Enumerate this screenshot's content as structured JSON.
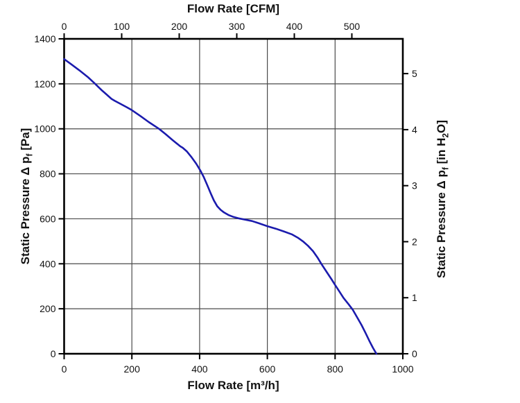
{
  "chart_data": {
    "type": "line",
    "grid": {
      "on": true,
      "color": "#4a4a4a"
    },
    "axes": {
      "top": {
        "label": "Flow Rate [CFM]",
        "ticks": [
          0,
          100,
          200,
          300,
          400,
          500
        ],
        "m3h_per_cfm": 1.699
      },
      "bottom": {
        "label": "Flow Rate [m³/h]",
        "ticks": [
          0,
          200,
          400,
          600,
          800,
          1000
        ],
        "min": 0,
        "max": 1000
      },
      "left": {
        "label_pre": "Static Pressure Δ p",
        "label_sub": "f",
        "label_post": " [Pa]",
        "ticks": [
          0,
          200,
          400,
          600,
          800,
          1000,
          1200,
          1400
        ],
        "min": 0,
        "max": 1400
      },
      "right": {
        "label_pre": "Static Pressure Δ p",
        "label_sub": "f",
        "label_post": " [in H",
        "label_sub2": "2",
        "label_post2": "O]",
        "ticks": [
          0,
          1,
          2,
          3,
          4,
          5
        ],
        "pa_per_unit": 249.089
      }
    },
    "series": [
      {
        "name": "static-pressure-curve",
        "color": "#1b1bad",
        "points_m3h_pa": [
          [
            0,
            1310
          ],
          [
            20,
            1288
          ],
          [
            45,
            1260
          ],
          [
            70,
            1230
          ],
          [
            90,
            1202
          ],
          [
            110,
            1173
          ],
          [
            125,
            1153
          ],
          [
            140,
            1133
          ],
          [
            150,
            1124
          ],
          [
            165,
            1112
          ],
          [
            185,
            1096
          ],
          [
            200,
            1083
          ],
          [
            225,
            1057
          ],
          [
            250,
            1030
          ],
          [
            280,
            1000
          ],
          [
            300,
            976
          ],
          [
            320,
            950
          ],
          [
            335,
            932
          ],
          [
            343,
            922
          ],
          [
            350,
            916
          ],
          [
            362,
            900
          ],
          [
            375,
            876
          ],
          [
            390,
            845
          ],
          [
            402,
            815
          ],
          [
            412,
            786
          ],
          [
            422,
            752
          ],
          [
            432,
            716
          ],
          [
            442,
            682
          ],
          [
            452,
            656
          ],
          [
            462,
            640
          ],
          [
            472,
            628
          ],
          [
            485,
            617
          ],
          [
            500,
            608
          ],
          [
            515,
            602
          ],
          [
            535,
            596
          ],
          [
            555,
            590
          ],
          [
            575,
            580
          ],
          [
            600,
            567
          ],
          [
            625,
            556
          ],
          [
            650,
            543
          ],
          [
            672,
            531
          ],
          [
            690,
            516
          ],
          [
            705,
            500
          ],
          [
            720,
            480
          ],
          [
            735,
            456
          ],
          [
            748,
            428
          ],
          [
            760,
            398
          ],
          [
            775,
            364
          ],
          [
            790,
            330
          ],
          [
            800,
            306
          ],
          [
            812,
            278
          ],
          [
            825,
            248
          ],
          [
            840,
            220
          ],
          [
            852,
            196
          ],
          [
            865,
            162
          ],
          [
            878,
            128
          ],
          [
            890,
            92
          ],
          [
            902,
            55
          ],
          [
            912,
            26
          ],
          [
            922,
            0
          ]
        ]
      }
    ]
  },
  "colors": {
    "background": "#ffffff",
    "axis": "#000000",
    "grid": "#4a4a4a",
    "text": "#111111",
    "curve": "#1b1bad"
  }
}
